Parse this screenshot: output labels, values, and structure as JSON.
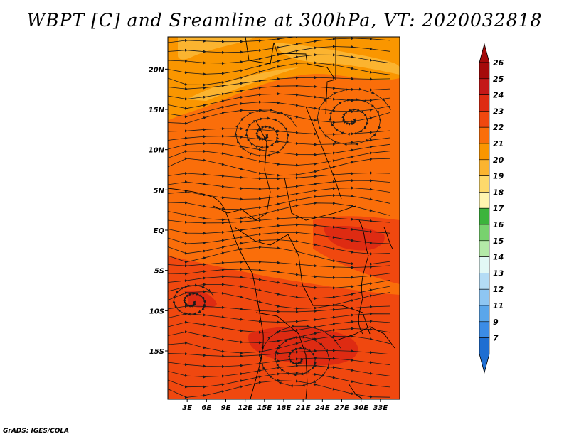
{
  "title": "WBPT [C] and Sreamline at 300hPa, VT: 2020032818",
  "credit": "GrADS: IGES/COLA",
  "map": {
    "lat_labels": [
      "20N",
      "15N",
      "10N",
      "5N",
      "EQ",
      "5S",
      "10S",
      "15S"
    ],
    "lon_labels": [
      "3E",
      "6E",
      "9E",
      "12E",
      "15E",
      "18E",
      "21E",
      "24E",
      "27E",
      "30E",
      "33E"
    ]
  },
  "colorbar": {
    "labels": [
      "26",
      "25",
      "24",
      "23",
      "22",
      "21",
      "20",
      "19",
      "18",
      "17",
      "16",
      "15",
      "14",
      "13",
      "12",
      "11",
      "9",
      "7"
    ],
    "colors": [
      "#a50a0a",
      "#c41818",
      "#de2b12",
      "#f0480f",
      "#fa6e0a",
      "#fa9600",
      "#fbb430",
      "#fdd96b",
      "#fff4b0",
      "#3cb43c",
      "#78d26e",
      "#b4eaa8",
      "#e2f8f5",
      "#b4dcf5",
      "#8ec6f2",
      "#5aa6ea",
      "#3c8ce6",
      "#1e6ed2"
    ],
    "top_arrow_color": "#a50a0a",
    "bottom_arrow_color": "#1e6ed2"
  },
  "colors": {
    "field_base": "#fa6e0a",
    "field_warm": "#f0480f",
    "field_hot": "#de2b12",
    "field_cool": "#fa9600",
    "field_cooler": "#fbb430",
    "streamline": "#1a1a1a",
    "border": "#000000"
  }
}
